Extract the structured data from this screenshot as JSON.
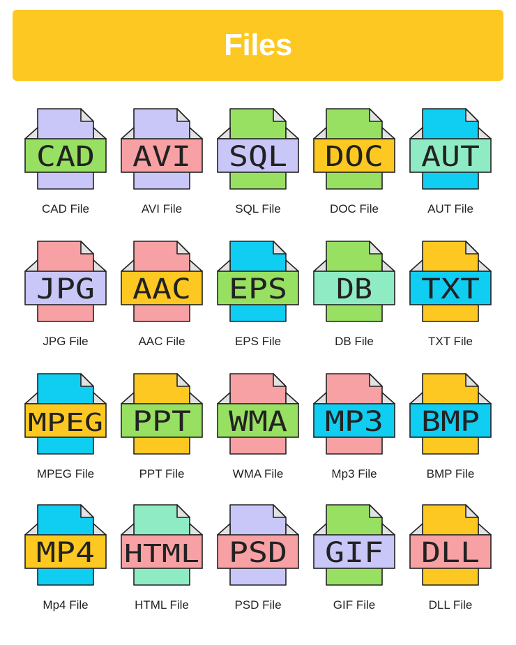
{
  "header": {
    "title": "Files"
  },
  "colors": {
    "banner": "#FDC822",
    "purple": "#C9C6F8",
    "green": "#97E062",
    "pink": "#F7A1A4",
    "orange": "#FDC822",
    "mint": "#8FEBC4",
    "cyan": "#10CDF2",
    "fold": "#E2E2E2",
    "outline": "#222222"
  },
  "files": [
    {
      "ext": "CAD",
      "caption": "CAD File",
      "sheet": "purple",
      "band": "green"
    },
    {
      "ext": "AVI",
      "caption": "AVI File",
      "sheet": "purple",
      "band": "pink"
    },
    {
      "ext": "SQL",
      "caption": "SQL File",
      "sheet": "green",
      "band": "purple"
    },
    {
      "ext": "DOC",
      "caption": "DOC File",
      "sheet": "green",
      "band": "orange"
    },
    {
      "ext": "AUT",
      "caption": "AUT File",
      "sheet": "cyan",
      "band": "mint"
    },
    {
      "ext": "JPG",
      "caption": "JPG File",
      "sheet": "pink",
      "band": "purple"
    },
    {
      "ext": "AAC",
      "caption": "AAC File",
      "sheet": "pink",
      "band": "orange"
    },
    {
      "ext": "EPS",
      "caption": "EPS File",
      "sheet": "cyan",
      "band": "green"
    },
    {
      "ext": "DB",
      "caption": "DB File",
      "sheet": "green",
      "band": "mint"
    },
    {
      "ext": "TXT",
      "caption": "TXT File",
      "sheet": "orange",
      "band": "cyan"
    },
    {
      "ext": "MPEG",
      "caption": "MPEG File",
      "sheet": "cyan",
      "band": "orange"
    },
    {
      "ext": "PPT",
      "caption": "PPT File",
      "sheet": "orange",
      "band": "green"
    },
    {
      "ext": "WMA",
      "caption": "WMA File",
      "sheet": "pink",
      "band": "green"
    },
    {
      "ext": "MP3",
      "caption": "Mp3 File",
      "sheet": "pink",
      "band": "cyan"
    },
    {
      "ext": "BMP",
      "caption": "BMP File",
      "sheet": "orange",
      "band": "cyan"
    },
    {
      "ext": "MP4",
      "caption": "Mp4 File",
      "sheet": "cyan",
      "band": "orange"
    },
    {
      "ext": "HTML",
      "caption": "HTML File",
      "sheet": "mint",
      "band": "pink"
    },
    {
      "ext": "PSD",
      "caption": "PSD File",
      "sheet": "purple",
      "band": "pink"
    },
    {
      "ext": "GIF",
      "caption": "GIF File",
      "sheet": "green",
      "band": "purple"
    },
    {
      "ext": "DLL",
      "caption": "DLL File",
      "sheet": "orange",
      "band": "pink"
    }
  ]
}
